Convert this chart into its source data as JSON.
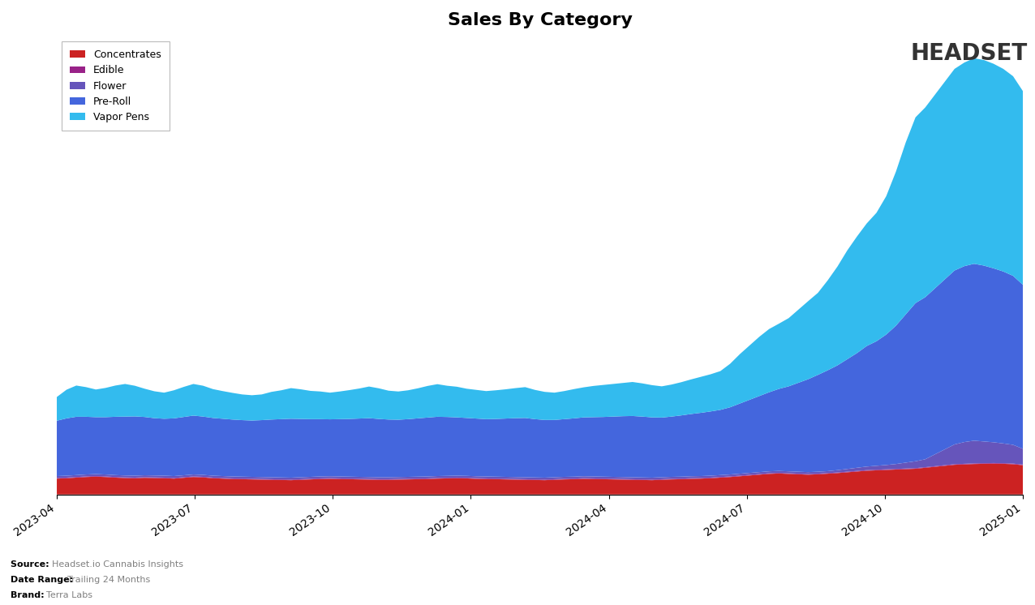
{
  "title": "Sales By Category",
  "categories": [
    "Concentrates",
    "Edible",
    "Flower",
    "Pre-Roll",
    "Vapor Pens"
  ],
  "colors": {
    "Concentrates": "#cc2222",
    "Edible": "#992288",
    "Flower": "#6655bb",
    "Pre-Roll": "#4466dd",
    "Vapor Pens": "#33bbee"
  },
  "x_tick_labels": [
    "2023-04",
    "2023-07",
    "2023-10",
    "2024-01",
    "2024-04",
    "2024-07",
    "2024-10",
    "2025-01"
  ],
  "footnote_brand": "Terra Labs",
  "footnote_range": "Trailing 24 Months",
  "footnote_source": "Headset.io Cannabis Insights",
  "n_points": 100,
  "concentrates": [
    80,
    82,
    85,
    88,
    90,
    88,
    85,
    83,
    82,
    84,
    83,
    82,
    80,
    84,
    88,
    86,
    82,
    80,
    78,
    77,
    76,
    75,
    74,
    73,
    72,
    74,
    76,
    78,
    79,
    78,
    77,
    76,
    75,
    74,
    74,
    75,
    76,
    77,
    78,
    80,
    81,
    82,
    81,
    79,
    78,
    77,
    76,
    75,
    74,
    73,
    72,
    74,
    76,
    77,
    79,
    78,
    77,
    76,
    75,
    74,
    73,
    72,
    74,
    76,
    77,
    79,
    80,
    82,
    85,
    88,
    92,
    96,
    100,
    104,
    106,
    104,
    102,
    100,
    102,
    105,
    108,
    112,
    116,
    120,
    122,
    124,
    126,
    128,
    130,
    135,
    140,
    145,
    150,
    152,
    154,
    155,
    156,
    155,
    153,
    148
  ],
  "edible": [
    3,
    3,
    3,
    3,
    3,
    3,
    3,
    3,
    3,
    3,
    3,
    3,
    3,
    3,
    3,
    3,
    3,
    3,
    3,
    3,
    3,
    3,
    3,
    3,
    3,
    3,
    3,
    3,
    3,
    3,
    3,
    3,
    3,
    3,
    3,
    3,
    3,
    3,
    3,
    3,
    3,
    3,
    3,
    3,
    3,
    3,
    3,
    3,
    3,
    3,
    3,
    3,
    3,
    3,
    3,
    3,
    3,
    3,
    3,
    3,
    3,
    3,
    3,
    3,
    3,
    3,
    3,
    3,
    3,
    3,
    3,
    3,
    3,
    3,
    3,
    3,
    3,
    3,
    3,
    3,
    3,
    3,
    3,
    3,
    3,
    3,
    3,
    3,
    3,
    3,
    3,
    3,
    3,
    3,
    3,
    3,
    3,
    3,
    3,
    3
  ],
  "flower": [
    10,
    10,
    10,
    10,
    10,
    10,
    10,
    10,
    10,
    10,
    10,
    10,
    10,
    10,
    10,
    10,
    10,
    10,
    10,
    10,
    10,
    10,
    10,
    10,
    10,
    10,
    10,
    10,
    10,
    10,
    10,
    10,
    10,
    10,
    10,
    10,
    10,
    10,
    10,
    10,
    10,
    10,
    10,
    10,
    10,
    10,
    10,
    10,
    10,
    10,
    10,
    10,
    10,
    10,
    10,
    10,
    10,
    10,
    10,
    10,
    10,
    10,
    10,
    10,
    10,
    10,
    10,
    10,
    10,
    10,
    10,
    10,
    10,
    10,
    10,
    10,
    10,
    10,
    10,
    10,
    12,
    14,
    16,
    18,
    20,
    22,
    25,
    30,
    35,
    40,
    60,
    80,
    100,
    110,
    115,
    110,
    105,
    100,
    95,
    80
  ],
  "preroll": [
    280,
    290,
    295,
    292,
    288,
    290,
    295,
    298,
    300,
    295,
    290,
    288,
    292,
    295,
    298,
    295,
    292,
    290,
    288,
    286,
    285,
    288,
    292,
    295,
    298,
    295,
    292,
    290,
    288,
    290,
    292,
    295,
    298,
    295,
    292,
    290,
    292,
    295,
    298,
    300,
    298,
    295,
    293,
    292,
    290,
    292,
    295,
    298,
    300,
    295,
    292,
    290,
    292,
    295,
    298,
    300,
    302,
    305,
    308,
    310,
    308,
    305,
    302,
    305,
    310,
    315,
    320,
    325,
    330,
    340,
    355,
    370,
    385,
    400,
    415,
    430,
    450,
    470,
    490,
    510,
    530,
    555,
    580,
    610,
    630,
    660,
    700,
    750,
    800,
    820,
    840,
    860,
    880,
    890,
    895,
    890,
    880,
    870,
    855,
    830
  ],
  "vaporpens": [
    120,
    145,
    158,
    150,
    140,
    148,
    158,
    165,
    155,
    143,
    136,
    132,
    142,
    152,
    160,
    156,
    146,
    140,
    135,
    130,
    128,
    130,
    140,
    146,
    155,
    150,
    143,
    140,
    135,
    140,
    146,
    152,
    160,
    155,
    146,
    143,
    146,
    152,
    160,
    165,
    158,
    155,
    148,
    145,
    142,
    145,
    148,
    152,
    156,
    148,
    142,
    138,
    142,
    148,
    152,
    158,
    162,
    165,
    168,
    172,
    168,
    163,
    158,
    162,
    168,
    175,
    182,
    188,
    196,
    220,
    250,
    275,
    300,
    320,
    330,
    345,
    370,
    395,
    415,
    455,
    500,
    550,
    590,
    620,
    650,
    700,
    780,
    870,
    940,
    960,
    980,
    1000,
    1020,
    1030,
    1040,
    1040,
    1035,
    1025,
    1010,
    980
  ]
}
